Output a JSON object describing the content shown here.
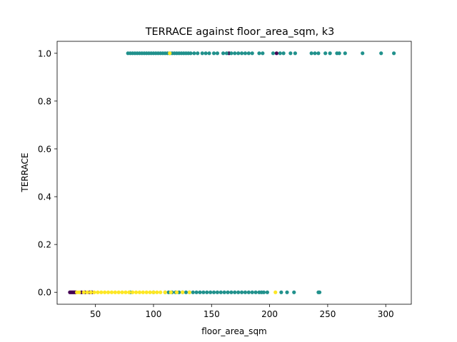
{
  "chart_data": {
    "type": "scatter",
    "title": "TERRACE against floor_area_sqm, k3",
    "xlabel": "floor_area_sqm",
    "ylabel": "TERRACE",
    "xlim": [
      17,
      322
    ],
    "ylim": [
      -0.05,
      1.05
    ],
    "xticks": [
      50,
      100,
      150,
      200,
      250,
      300
    ],
    "yticks": [
      0.0,
      0.2,
      0.4,
      0.6,
      0.8,
      1.0
    ],
    "xtick_labels": [
      "50",
      "100",
      "150",
      "200",
      "250",
      "300"
    ],
    "ytick_labels": [
      "0.0",
      "0.2",
      "0.4",
      "0.6",
      "0.8",
      "1.0"
    ],
    "grid": false,
    "legend": "none",
    "series": [
      {
        "color": "#440154",
        "points": [
          [
            28,
            0
          ],
          [
            29,
            0
          ],
          [
            30,
            0
          ],
          [
            31,
            0
          ],
          [
            32,
            0
          ],
          [
            33,
            0
          ],
          [
            38,
            0
          ],
          [
            41,
            0
          ],
          [
            45,
            0
          ],
          [
            47,
            0
          ],
          [
            165,
            1
          ],
          [
            206,
            1
          ]
        ]
      },
      {
        "color": "#21918c",
        "points": [
          [
            78,
            1
          ],
          [
            80,
            1
          ],
          [
            82,
            1
          ],
          [
            84,
            1
          ],
          [
            86,
            1
          ],
          [
            88,
            1
          ],
          [
            90,
            1
          ],
          [
            92,
            1
          ],
          [
            94,
            1
          ],
          [
            96,
            1
          ],
          [
            98,
            1
          ],
          [
            100,
            1
          ],
          [
            102,
            1
          ],
          [
            104,
            1
          ],
          [
            106,
            1
          ],
          [
            108,
            1
          ],
          [
            110,
            1
          ],
          [
            112,
            1
          ],
          [
            114,
            1
          ],
          [
            116,
            1
          ],
          [
            118,
            1
          ],
          [
            120,
            1
          ],
          [
            122,
            1
          ],
          [
            124,
            1
          ],
          [
            126,
            1
          ],
          [
            128,
            1
          ],
          [
            130,
            1
          ],
          [
            132,
            1
          ],
          [
            135,
            1
          ],
          [
            138,
            1
          ],
          [
            142,
            1
          ],
          [
            145,
            1
          ],
          [
            148,
            1
          ],
          [
            152,
            1
          ],
          [
            155,
            1
          ],
          [
            160,
            1
          ],
          [
            163,
            1
          ],
          [
            167,
            1
          ],
          [
            170,
            1
          ],
          [
            173,
            1
          ],
          [
            176,
            1
          ],
          [
            179,
            1
          ],
          [
            182,
            1
          ],
          [
            185,
            1
          ],
          [
            191,
            1
          ],
          [
            194,
            1
          ],
          [
            203,
            1
          ],
          [
            209,
            1
          ],
          [
            212,
            1
          ],
          [
            218,
            1
          ],
          [
            222,
            1
          ],
          [
            236,
            1
          ],
          [
            239,
            1
          ],
          [
            242,
            1
          ],
          [
            248,
            1
          ],
          [
            252,
            1
          ],
          [
            258,
            1
          ],
          [
            260,
            1
          ],
          [
            265,
            1
          ],
          [
            280,
            1
          ],
          [
            296,
            1
          ],
          [
            307,
            1
          ],
          [
            80,
            0
          ],
          [
            100,
            0
          ],
          [
            110,
            0
          ],
          [
            113,
            0
          ],
          [
            116,
            0
          ],
          [
            119,
            0
          ],
          [
            122,
            0
          ],
          [
            125,
            0
          ],
          [
            128,
            0
          ],
          [
            131,
            0
          ],
          [
            134,
            0
          ],
          [
            137,
            0
          ],
          [
            140,
            0
          ],
          [
            143,
            0
          ],
          [
            146,
            0
          ],
          [
            149,
            0
          ],
          [
            152,
            0
          ],
          [
            155,
            0
          ],
          [
            158,
            0
          ],
          [
            161,
            0
          ],
          [
            164,
            0
          ],
          [
            167,
            0
          ],
          [
            170,
            0
          ],
          [
            173,
            0
          ],
          [
            176,
            0
          ],
          [
            179,
            0
          ],
          [
            182,
            0
          ],
          [
            185,
            0
          ],
          [
            188,
            0
          ],
          [
            191,
            0
          ],
          [
            193,
            0
          ],
          [
            195,
            0
          ],
          [
            198,
            0
          ],
          [
            210,
            0
          ],
          [
            215,
            0
          ],
          [
            221,
            0
          ],
          [
            242,
            0
          ],
          [
            243,
            0
          ]
        ]
      },
      {
        "color": "#fde725",
        "points": [
          [
            34,
            0
          ],
          [
            36,
            0
          ],
          [
            40,
            0
          ],
          [
            43,
            0
          ],
          [
            46,
            0
          ],
          [
            49,
            0
          ],
          [
            52,
            0
          ],
          [
            55,
            0
          ],
          [
            58,
            0
          ],
          [
            61,
            0
          ],
          [
            64,
            0
          ],
          [
            67,
            0
          ],
          [
            70,
            0
          ],
          [
            73,
            0
          ],
          [
            76,
            0
          ],
          [
            79,
            0
          ],
          [
            82,
            0
          ],
          [
            85,
            0
          ],
          [
            88,
            0
          ],
          [
            91,
            0
          ],
          [
            94,
            0
          ],
          [
            97,
            0
          ],
          [
            100,
            0
          ],
          [
            103,
            0
          ],
          [
            106,
            0
          ],
          [
            110,
            0
          ],
          [
            115,
            0
          ],
          [
            120,
            0
          ],
          [
            125,
            0
          ],
          [
            131,
            0
          ],
          [
            205,
            0
          ],
          [
            114,
            1
          ]
        ]
      }
    ]
  }
}
